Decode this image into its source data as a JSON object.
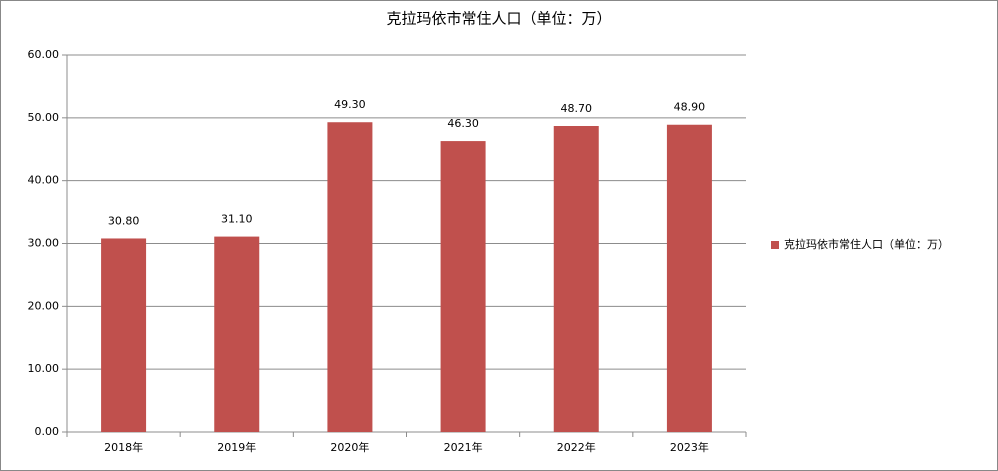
{
  "chart_data": {
    "type": "bar",
    "title": "克拉玛依市常住人口（单位：万）",
    "categories": [
      "2018年",
      "2019年",
      "2020年",
      "2021年",
      "2022年",
      "2023年"
    ],
    "series": [
      {
        "name": "克拉玛依市常住人口（单位：万）",
        "color": "#c0504d",
        "values": [
          30.8,
          31.1,
          49.3,
          46.3,
          48.7,
          48.9
        ],
        "value_labels": [
          "30.80",
          "31.10",
          "49.30",
          "46.30",
          "48.70",
          "48.90"
        ]
      }
    ],
    "ylim": [
      0,
      60
    ],
    "yticks": [
      {
        "value": 0,
        "label": "0.00"
      },
      {
        "value": 10,
        "label": "10.00"
      },
      {
        "value": 20,
        "label": "20.00"
      },
      {
        "value": 30,
        "label": "30.00"
      },
      {
        "value": 40,
        "label": "40.00"
      },
      {
        "value": 50,
        "label": "50.00"
      },
      {
        "value": 60,
        "label": "60.00"
      }
    ],
    "grid": true,
    "legend": "right"
  }
}
